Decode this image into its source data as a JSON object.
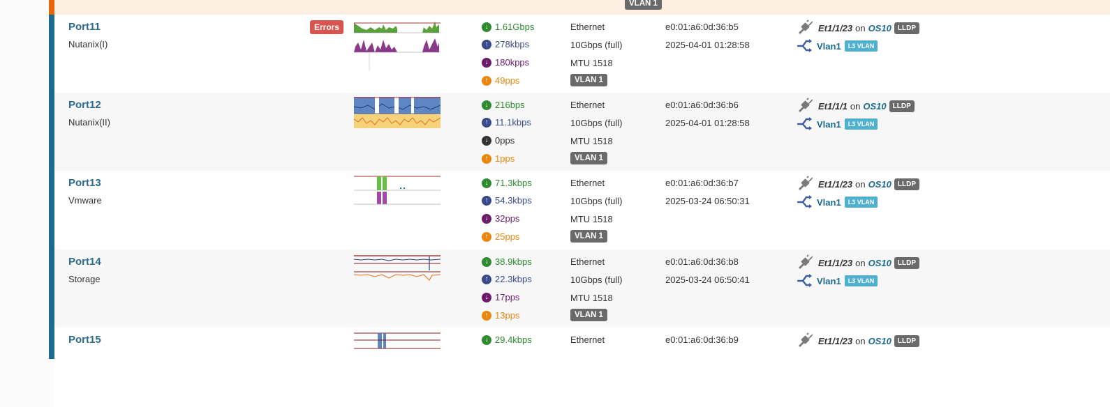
{
  "top_row": {
    "vlan_label": "VLAN 1"
  },
  "colors": {
    "accent": "#1b6b8e",
    "accent_top": "#e8660d",
    "rx_green": "#2e8b2e",
    "tx_blue": "#3a4a8c",
    "rx_pps_purple": "#6a1b6a",
    "tx_pps_orange": "#e8860d",
    "error_red": "#d9534f",
    "l3_badge": "#4fb0d0"
  },
  "ports": [
    {
      "name": "Port11",
      "description": "Nutanix(I)",
      "errors_badge": "Errors",
      "rx_bps": "1.61Gbps",
      "tx_bps": "278kbps",
      "rx_pps": "180kpps",
      "tx_pps": "49pps",
      "type": "Ethernet",
      "speed": "10Gbps (full)",
      "mtu": "MTU 1518",
      "vlan": "VLAN 1",
      "mac": "e0:01:a6:0d:36:b5",
      "timestamp": "2025-04-01 01:28:58",
      "neighbor_if": "Et1/1/23",
      "on_label": "on",
      "neighbor_dev": "OS10",
      "proto": "LLDP",
      "l3_name": "Vlan1",
      "l3_badge": "L3 VLAN",
      "graph_style": "errors"
    },
    {
      "name": "Port12",
      "description": "Nutanix(II)",
      "errors_badge": "",
      "rx_bps": "216bps",
      "tx_bps": "11.1kbps",
      "rx_pps": "0pps",
      "tx_pps": "1pps",
      "type": "Ethernet",
      "speed": "10Gbps (full)",
      "mtu": "MTU 1518",
      "vlan": "VLAN 1",
      "mac": "e0:01:a6:0d:36:b6",
      "timestamp": "2025-04-01 01:28:58",
      "neighbor_if": "Et1/1/1",
      "on_label": "on",
      "neighbor_dev": "OS10",
      "proto": "LLDP",
      "l3_name": "Vlan1",
      "l3_badge": "L3 VLAN",
      "graph_style": "full"
    },
    {
      "name": "Port13",
      "description": "Vmware",
      "errors_badge": "",
      "rx_bps": "71.3kbps",
      "tx_bps": "54.3kbps",
      "rx_pps": "32pps",
      "tx_pps": "25pps",
      "type": "Ethernet",
      "speed": "10Gbps (full)",
      "mtu": "MTU 1518",
      "vlan": "VLAN 1",
      "mac": "e0:01:a6:0d:36:b7",
      "timestamp": "2025-03-24 06:50:31",
      "neighbor_if": "Et1/1/23",
      "on_label": "on",
      "neighbor_dev": "OS10",
      "proto": "LLDP",
      "l3_name": "Vlan1",
      "l3_badge": "L3 VLAN",
      "graph_style": "sparse"
    },
    {
      "name": "Port14",
      "description": "Storage",
      "errors_badge": "",
      "rx_bps": "38.9kbps",
      "tx_bps": "22.3kbps",
      "rx_pps": "17pps",
      "tx_pps": "13pps",
      "type": "Ethernet",
      "speed": "10Gbps (full)",
      "mtu": "MTU 1518",
      "vlan": "VLAN 1",
      "mac": "e0:01:a6:0d:36:b8",
      "timestamp": "2025-03-24 06:50:41",
      "neighbor_if": "Et1/1/23",
      "on_label": "on",
      "neighbor_dev": "OS10",
      "proto": "LLDP",
      "l3_name": "Vlan1",
      "l3_badge": "L3 VLAN",
      "graph_style": "flat"
    },
    {
      "name": "Port15",
      "description": "",
      "errors_badge": "",
      "rx_bps": "29.4kbps",
      "tx_bps": "",
      "rx_pps": "",
      "tx_pps": "",
      "type": "Ethernet",
      "speed": "",
      "mtu": "",
      "vlan": "",
      "mac": "e0:01:a6:0d:36:b9",
      "timestamp": "",
      "neighbor_if": "Et1/1/23",
      "on_label": "on",
      "neighbor_dev": "OS10",
      "proto": "LLDP",
      "l3_name": "",
      "l3_badge": "",
      "graph_style": "spike"
    }
  ]
}
